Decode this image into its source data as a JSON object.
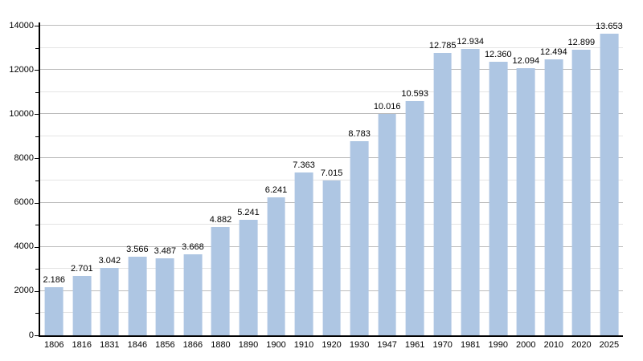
{
  "chart_data": {
    "type": "bar",
    "title": "",
    "categories": [
      "1806",
      "1816",
      "1831",
      "1846",
      "1856",
      "1866",
      "1880",
      "1890",
      "1900",
      "1910",
      "1920",
      "1930",
      "1947",
      "1961",
      "1970",
      "1981",
      "1990",
      "2000",
      "2010",
      "2020",
      "2025"
    ],
    "values": [
      2186,
      2701,
      3042,
      3566,
      3487,
      3668,
      4882,
      5241,
      6241,
      7363,
      7015,
      8783,
      10016,
      10593,
      12785,
      12934,
      12360,
      12094,
      12494,
      12899,
      13653
    ],
    "value_labels": [
      "2.186",
      "2.701",
      "3.042",
      "3.566",
      "3.487",
      "3.668",
      "4.882",
      "5.241",
      "6.241",
      "7.363",
      "7.015",
      "8.783",
      "10.016",
      "10.593",
      "12.785",
      "12.934",
      "12.360",
      "12.094",
      "12.494",
      "12.899",
      "13.653"
    ],
    "xlabel": "",
    "ylabel": "",
    "ylim": [
      0,
      14000
    ],
    "y_major_step": 2000,
    "y_minor_step": 1000,
    "y_tick_labels": [
      "0",
      "2000",
      "4000",
      "6000",
      "8000",
      "10000",
      "12000",
      "14000"
    ],
    "grid": "major-and-minor-horizontal",
    "legend": "none",
    "colors": {
      "bar": "#aec6e3",
      "major_grid": "#bcbcbc",
      "minor_grid": "#e4e4e4",
      "axis": "#000000",
      "text": "#000000",
      "background": "#ffffff"
    }
  }
}
